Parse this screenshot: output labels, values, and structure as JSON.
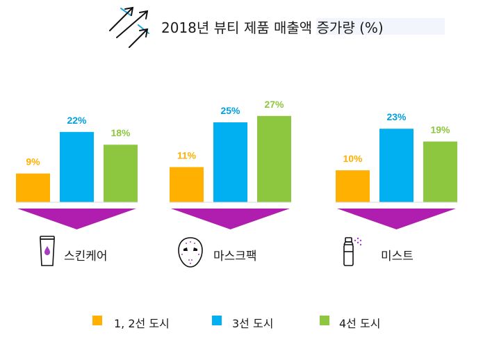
{
  "chart_data": {
    "type": "bar",
    "title": "2018년 뷰티 제품 매출액 증가량 (%)",
    "categories": [
      "스킨케어",
      "마스크팩",
      "미스트"
    ],
    "series": [
      {
        "name": "1, 2선 도시",
        "values": [
          9,
          11,
          10
        ],
        "labels": [
          "9%",
          "11%",
          "10%"
        ],
        "color": "#ffb000",
        "label_color": "#ffb000"
      },
      {
        "name": "3선 도시",
        "values": [
          22,
          25,
          23
        ],
        "labels": [
          "22%",
          "25%",
          "23%"
        ],
        "color": "#00b0f0",
        "label_color": "#00a0e0"
      },
      {
        "name": "4선 도시",
        "values": [
          18,
          27,
          19
        ],
        "labels": [
          "18%",
          "27%",
          "19%"
        ],
        "color": "#8dc63f",
        "label_color": "#8dc63f"
      }
    ],
    "ylim": [
      0,
      27
    ],
    "xlabel": "",
    "ylabel": "",
    "grid": false,
    "legend": "bottom",
    "accent_color": "#b01eb0",
    "icons": [
      "tube-icon",
      "face-mask-icon",
      "mist-spray-icon"
    ]
  }
}
